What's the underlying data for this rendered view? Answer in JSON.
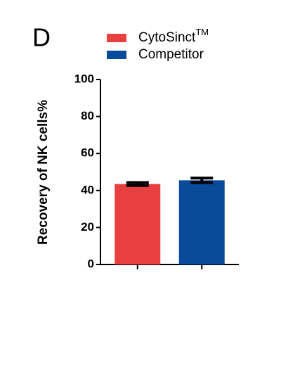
{
  "chart_data": {
    "type": "bar",
    "panel_label": "D",
    "ylabel": "Recovery of  NK  cells%",
    "categories": [
      null,
      null
    ],
    "series": [
      {
        "name": "CytoSinct",
        "name_superscript": "TM",
        "color": "#e84040",
        "values": [
          43.5,
          null
        ],
        "errors": [
          0.8,
          null
        ]
      },
      {
        "name": "Competitor",
        "color": "#0a4a9a",
        "values": [
          null,
          45.5
        ],
        "errors": [
          null,
          1.2
        ]
      }
    ],
    "ylim": [
      0,
      100
    ],
    "yticks": [
      0,
      20,
      40,
      60,
      80,
      100
    ]
  }
}
